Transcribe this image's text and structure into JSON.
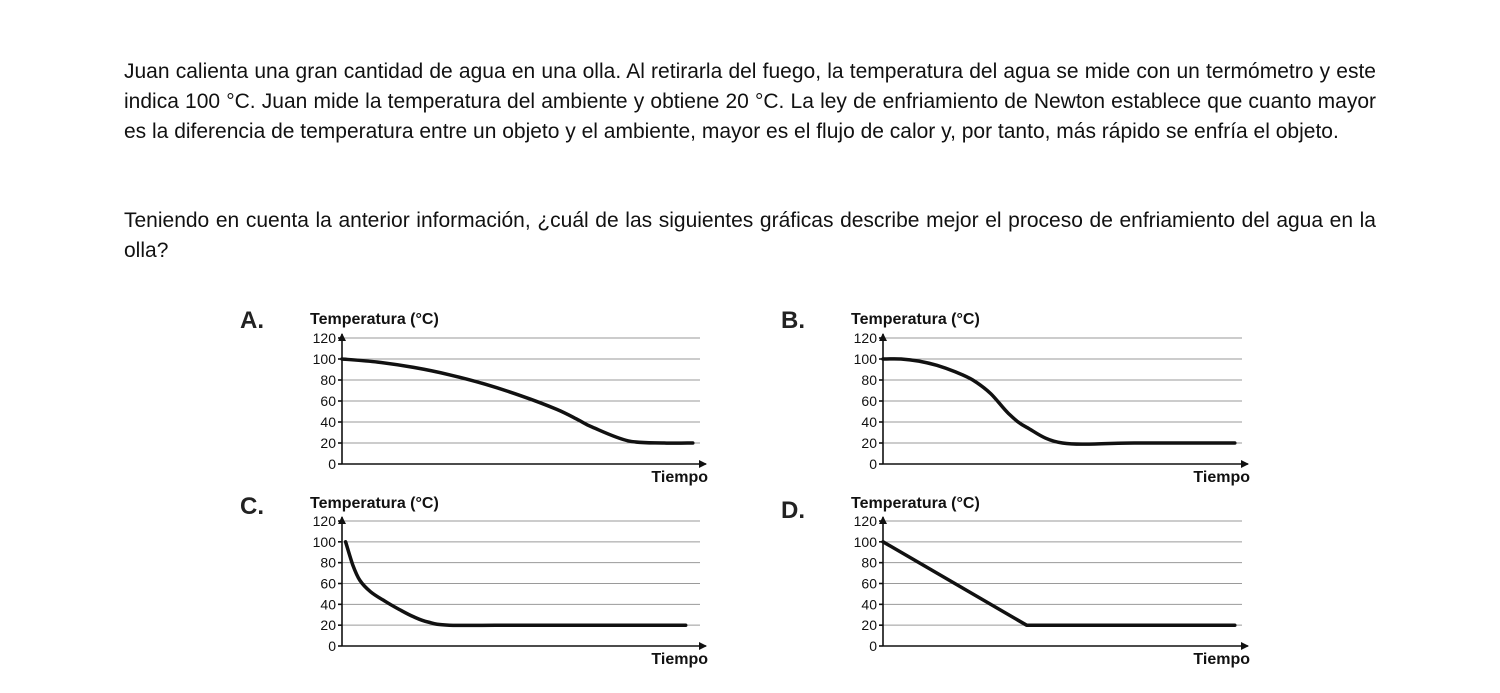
{
  "question": {
    "paragraph_1": "Juan calienta una gran cantidad de agua en una olla. Al retirarla del fuego, la temperatura del agua se mide con un termómetro y este indica 100 °C. Juan mide la temperatura del ambiente y obtiene 20 °C. La ley de enfriamiento de Newton establece que cuanto mayor es la diferencia de temperatura entre un objeto y el ambiente, mayor es el flujo de calor y, por tanto, más rápido se enfría el objeto.",
    "paragraph_2": "Teniendo en cuenta la anterior información, ¿cuál de las siguientes gráficas describe mejor el proceso de enfriamiento del agua en la olla?"
  },
  "chart_data": [
    {
      "option": "A.",
      "type": "line",
      "ylabel": "Temperatura (°C)",
      "xlabel": "Tiempo",
      "yticks": [
        "0",
        "20",
        "40",
        "60",
        "80",
        "100",
        "120"
      ],
      "ylim": [
        0,
        120
      ],
      "xlim": [
        0,
        10
      ],
      "grid": true,
      "series": [
        {
          "x": [
            0,
            1,
            2,
            3,
            4,
            5,
            6,
            6.6,
            7,
            8,
            9,
            9.8
          ],
          "y": [
            100,
            97,
            92,
            85,
            76,
            65,
            52,
            42,
            35,
            22,
            20,
            20
          ]
        }
      ]
    },
    {
      "option": "B.",
      "type": "line",
      "ylabel": "Temperatura (°C)",
      "xlabel": "Tiempo",
      "yticks": [
        "0",
        "20",
        "40",
        "60",
        "80",
        "100",
        "120"
      ],
      "ylim": [
        0,
        120
      ],
      "xlim": [
        0,
        10
      ],
      "grid": true,
      "series": [
        {
          "x": [
            0,
            0.5,
            1,
            1.5,
            2,
            2.5,
            3,
            3.5,
            4,
            5,
            7,
            9.8
          ],
          "y": [
            100,
            100,
            98,
            94,
            88,
            80,
            67,
            48,
            35,
            20,
            20,
            20
          ]
        }
      ]
    },
    {
      "option": "C.",
      "type": "line",
      "ylabel": "Temperatura (°C)",
      "xlabel": "Tiempo",
      "yticks": [
        "0",
        "20",
        "40",
        "60",
        "80",
        "100",
        "120"
      ],
      "ylim": [
        0,
        120
      ],
      "xlim": [
        0,
        10
      ],
      "grid": true,
      "series": [
        {
          "x": [
            0.1,
            0.3,
            0.5,
            0.8,
            1.2,
            1.6,
            2,
            2.4,
            3,
            5,
            7,
            9.6
          ],
          "y": [
            100,
            78,
            63,
            52,
            43,
            35,
            28,
            23,
            20,
            20,
            20,
            20
          ]
        }
      ]
    },
    {
      "option": "D.",
      "type": "line",
      "ylabel": "Temperatura (°C)",
      "xlabel": "Tiempo",
      "yticks": [
        "0",
        "20",
        "40",
        "60",
        "80",
        "100",
        "120"
      ],
      "ylim": [
        0,
        120
      ],
      "xlim": [
        0,
        10
      ],
      "grid": true,
      "series": [
        {
          "x": [
            0,
            4,
            6,
            9.8
          ],
          "y": [
            100,
            20,
            20,
            20
          ]
        }
      ]
    }
  ]
}
